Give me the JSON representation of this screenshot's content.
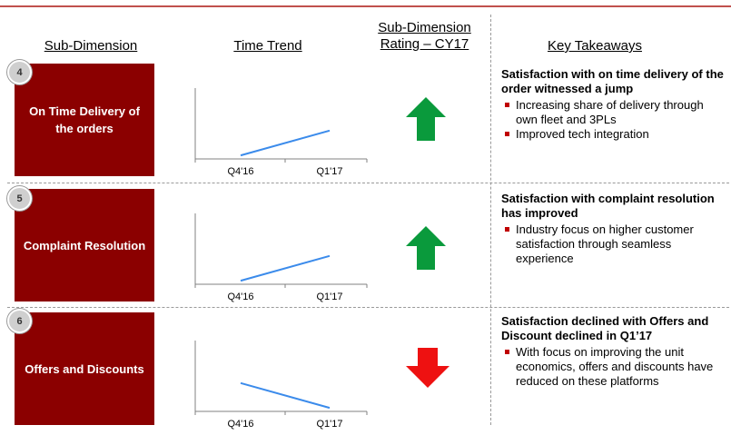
{
  "headers": {
    "sub_dimension": "Sub-Dimension",
    "time_trend": "Time Trend",
    "rating_line1": "Sub-Dimension",
    "rating_line2": "Rating – CY17",
    "key_takeaways": "Key Takeaways"
  },
  "colors": {
    "box": "#8b0000",
    "line": "#3b8beb",
    "up_arrow": "#0a9a3c",
    "down_arrow": "#ee1111",
    "top_rule": "#c0504d"
  },
  "chart_data": [
    {
      "type": "line",
      "categories": [
        "Q4'16",
        "Q1'17"
      ],
      "series": [
        {
          "values": [
            0.05,
            0.4
          ]
        }
      ],
      "ylim": [
        0,
        1
      ]
    },
    {
      "type": "line",
      "categories": [
        "Q4'16",
        "Q1'17"
      ],
      "series": [
        {
          "values": [
            0.05,
            0.4
          ]
        }
      ],
      "ylim": [
        0,
        1
      ]
    },
    {
      "type": "line",
      "categories": [
        "Q4'16",
        "Q1'17"
      ],
      "series": [
        {
          "values": [
            0.4,
            0.05
          ]
        }
      ],
      "ylim": [
        0,
        1
      ]
    }
  ],
  "rows": [
    {
      "number": "4",
      "title": "On Time Delivery of the orders",
      "rating": "up",
      "rating_icon": "arrow-up-icon",
      "takeaway_head": "Satisfaction with on time delivery of the order witnessed a jump",
      "bullets": [
        "Increasing share of delivery through own fleet and 3PLs",
        "Improved tech integration"
      ]
    },
    {
      "number": "5",
      "title": "Complaint Resolution",
      "rating": "up",
      "rating_icon": "arrow-up-icon",
      "takeaway_head": "Satisfaction with complaint resolution has improved",
      "bullets": [
        "Industry focus on higher customer satisfaction through seamless experience"
      ]
    },
    {
      "number": "6",
      "title": "Offers and Discounts",
      "rating": "down",
      "rating_icon": "arrow-down-icon",
      "takeaway_head": "Satisfaction declined with Offers and Discount declined in Q1’17",
      "bullets": [
        "With focus on improving the unit economics, offers and discounts have reduced on these platforms"
      ]
    }
  ]
}
